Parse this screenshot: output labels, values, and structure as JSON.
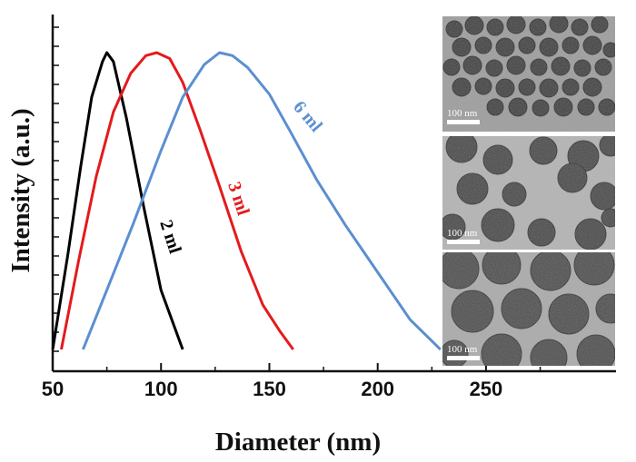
{
  "chart_data": {
    "type": "line",
    "xlabel": "Diameter (nm)",
    "ylabel": "Intensity (a.u.)",
    "xlim": [
      50,
      310
    ],
    "ylim": [
      0,
      1.0
    ],
    "xticks": [
      50,
      100,
      150,
      200,
      250
    ],
    "grid": false,
    "series": [
      {
        "name": "2 ml",
        "color": "#000000",
        "x": [
          50,
          57,
          63,
          68,
          73,
          75,
          78,
          84,
          92,
          100,
          106,
          110
        ],
        "y": [
          0.0,
          0.32,
          0.62,
          0.85,
          0.97,
          1.0,
          0.97,
          0.78,
          0.48,
          0.2,
          0.08,
          0.0
        ]
      },
      {
        "name": "3 ml",
        "color": "#e41a1c",
        "x": [
          54,
          62,
          70,
          78,
          86,
          93,
          98,
          104,
          110,
          118,
          127,
          137,
          147,
          155,
          161
        ],
        "y": [
          0.0,
          0.3,
          0.58,
          0.8,
          0.93,
          0.99,
          1.0,
          0.98,
          0.9,
          0.74,
          0.55,
          0.33,
          0.15,
          0.06,
          0.0
        ]
      },
      {
        "name": "6 ml",
        "color": "#5b8fd0",
        "x": [
          64,
          75,
          87,
          100,
          110,
          120,
          127,
          133,
          140,
          150,
          160,
          172,
          185,
          200,
          215,
          229
        ],
        "y": [
          0.0,
          0.2,
          0.42,
          0.67,
          0.85,
          0.96,
          1.0,
          0.99,
          0.95,
          0.86,
          0.73,
          0.57,
          0.42,
          0.26,
          0.1,
          0.0
        ]
      }
    ],
    "inset": {
      "panels": [
        {
          "scale_label": "100 nm"
        },
        {
          "scale_label": "100 nm"
        },
        {
          "scale_label": "100 nm"
        }
      ]
    }
  }
}
